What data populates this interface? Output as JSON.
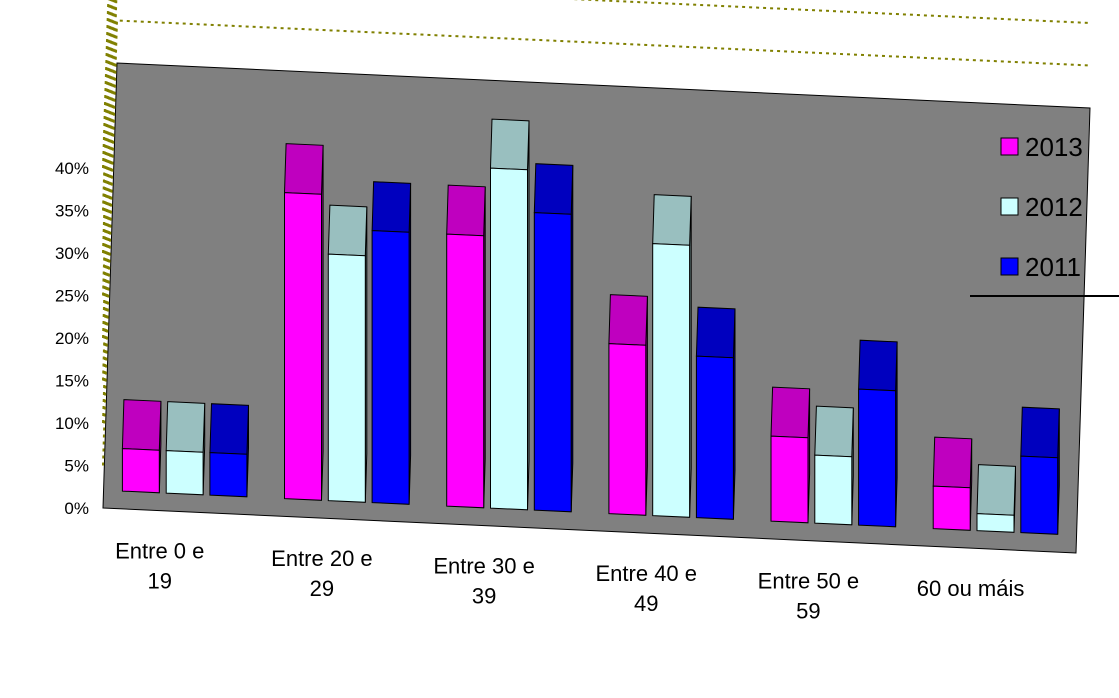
{
  "chart_data": {
    "type": "bar",
    "subtype": "3d-clustered-column",
    "categories": [
      [
        "Entre 0 e",
        "19"
      ],
      [
        "Entre 20 e",
        "29"
      ],
      [
        "Entre 30 e",
        "39"
      ],
      [
        "Entre 40 e",
        "49"
      ],
      [
        "Entre 50 e",
        "59"
      ],
      [
        "60 ou máis"
      ]
    ],
    "series": [
      {
        "name": "2013",
        "color": "#ff00ff",
        "values": [
          5,
          36,
          32,
          20,
          10,
          5
        ]
      },
      {
        "name": "2012",
        "color": "#ccffff",
        "values": [
          5,
          29,
          40,
          32,
          8,
          2
        ]
      },
      {
        "name": "2011",
        "color": "#0000ff",
        "values": [
          5,
          32,
          35,
          19,
          16,
          9
        ]
      }
    ],
    "yticks": [
      "0%",
      "5%",
      "10%",
      "15%",
      "20%",
      "25%",
      "30%",
      "35%",
      "40%"
    ],
    "ylim": [
      0,
      40
    ],
    "grid": true,
    "grid_color": "#808000",
    "floor_color": "#808080",
    "legend": {
      "position": "right",
      "order": [
        "2013",
        "2012",
        "2011"
      ]
    },
    "title": "",
    "xlabel": "",
    "ylabel": ""
  }
}
